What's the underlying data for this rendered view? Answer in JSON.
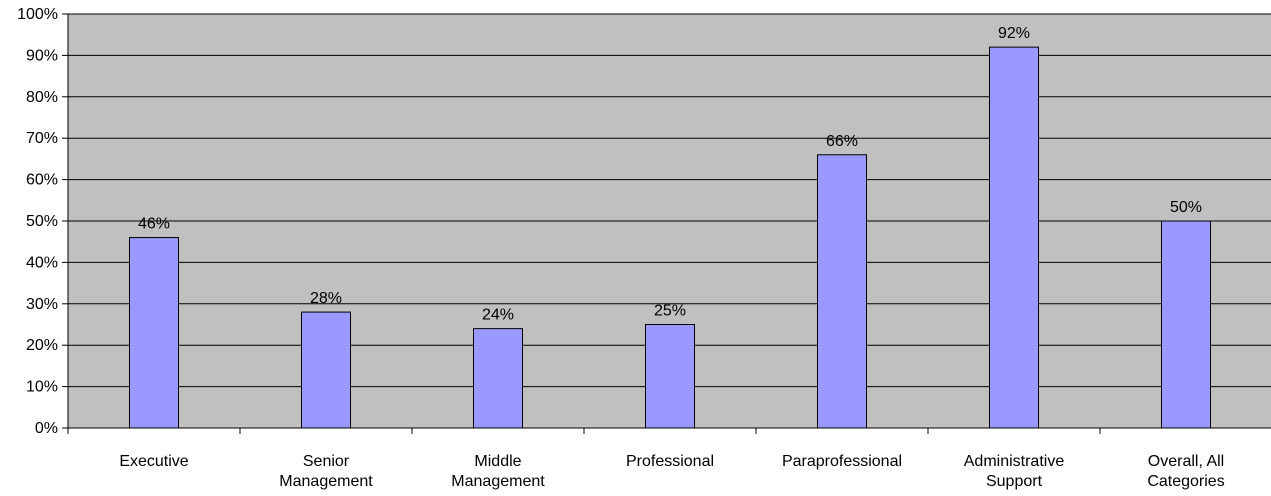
{
  "chart_data": {
    "type": "bar",
    "categories": [
      [
        "Executive"
      ],
      [
        "Senior",
        "Management"
      ],
      [
        "Middle",
        "Management"
      ],
      [
        "Professional"
      ],
      [
        "Paraprofessional"
      ],
      [
        "Administrative",
        "Support"
      ],
      [
        "Overall, All",
        "Categories"
      ]
    ],
    "values": [
      46,
      28,
      24,
      25,
      66,
      92,
      50
    ],
    "data_labels": [
      "46%",
      "28%",
      "24%",
      "25%",
      "66%",
      "92%",
      "50%"
    ],
    "ylim": [
      0,
      100
    ],
    "y_ticks": [
      0,
      10,
      20,
      30,
      40,
      50,
      60,
      70,
      80,
      90,
      100
    ],
    "y_tick_labels": [
      "0%",
      "10%",
      "20%",
      "30%",
      "40%",
      "50%",
      "60%",
      "70%",
      "80%",
      "90%",
      "100%"
    ],
    "grid": true,
    "legend": "none",
    "colors": {
      "bar_fill": "#9999ff",
      "bar_stroke": "#000000",
      "plot_background": "#c0c0c0",
      "gridline": "#000000"
    }
  }
}
